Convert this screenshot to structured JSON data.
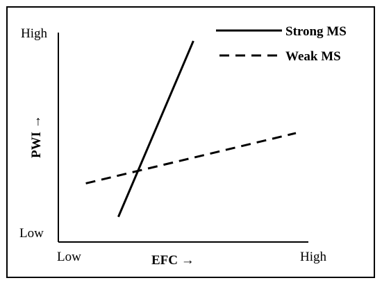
{
  "chart_data": {
    "type": "line",
    "xlabel": "EFC →",
    "ylabel": "PWI →",
    "x_tick_labels": [
      "Low",
      "High"
    ],
    "y_tick_labels": [
      "Low",
      "High"
    ],
    "xlim": [
      0,
      100
    ],
    "ylim": [
      0,
      100
    ],
    "grid": false,
    "legend_position": "top-right",
    "series": [
      {
        "name": "Strong MS",
        "style": "solid",
        "color": "#000000",
        "x": [
          24,
          54
        ],
        "y": [
          12,
          96
        ]
      },
      {
        "name": "Weak MS",
        "style": "dashed",
        "color": "#000000",
        "x": [
          11,
          95
        ],
        "y": [
          28,
          52
        ]
      }
    ]
  }
}
